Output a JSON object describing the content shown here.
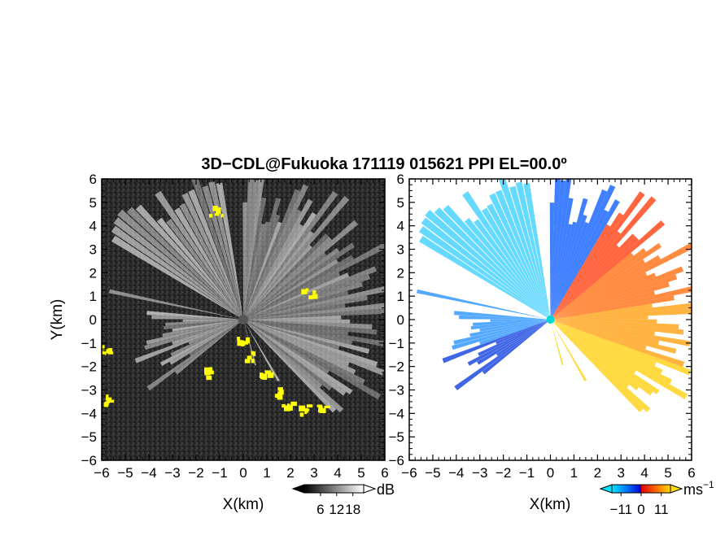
{
  "title": "3D−CDL@Fukuoka 171119 015621 PPI EL=00.0º",
  "chart_data": [
    {
      "type": "heatmap",
      "panel": "left",
      "quantity": "signal-to-noise ratio",
      "xlabel": "X(km)",
      "ylabel": "Y(km)",
      "xlim": [
        -6,
        6
      ],
      "ylim": [
        -6,
        6
      ],
      "xticks": [
        "−6",
        "−5",
        "−4",
        "−3",
        "−2",
        "−1",
        "0",
        "1",
        "2",
        "3",
        "4",
        "5",
        "6"
      ],
      "yticks": [
        "−6",
        "−5",
        "−4",
        "−3",
        "−2",
        "−1",
        "0",
        "1",
        "2",
        "3",
        "4",
        "5",
        "6"
      ],
      "background_color": "#2a2a2a",
      "beam_color": "#e6e6e6",
      "mask_color": "#ffff00",
      "colorbar": {
        "unit": "dB",
        "ticks": [
          6,
          12,
          18
        ],
        "tick_labels": [
          "6",
          "12",
          "18"
        ],
        "range": [
          0,
          22
        ],
        "colors": [
          "#000000",
          "#ffffff"
        ]
      }
    },
    {
      "type": "heatmap",
      "panel": "right",
      "quantity": "radial velocity",
      "xlabel": "X(km)",
      "xlim": [
        -6,
        6
      ],
      "ylim": [
        -6,
        6
      ],
      "xticks": [
        "−6",
        "−5",
        "−4",
        "−3",
        "−2",
        "−1",
        "0",
        "1",
        "2",
        "3",
        "4",
        "5",
        "6"
      ],
      "yticks": [
        "−6",
        "−5",
        "−4",
        "−3",
        "−2",
        "−1",
        "0",
        "1",
        "2",
        "3",
        "4",
        "5",
        "6"
      ],
      "background_color": "#ffffff",
      "colorbar": {
        "unit": "ms",
        "unit_exponent": "−1",
        "ticks": [
          -11,
          0,
          11
        ],
        "tick_labels": [
          "−11",
          "0",
          "11"
        ],
        "range": [
          -16,
          16
        ],
        "colors": [
          "#00e5ff",
          "#0077ff",
          "#0000cc",
          "#dd0000",
          "#ff6600",
          "#ffdd00"
        ]
      }
    }
  ]
}
